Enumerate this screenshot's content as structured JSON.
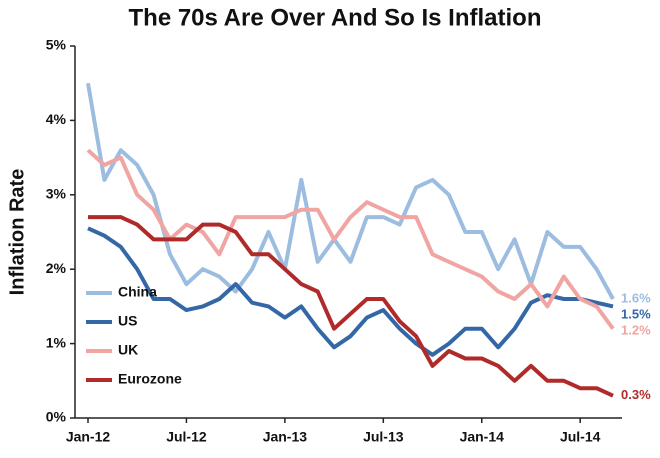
{
  "chart_data": {
    "type": "line",
    "title": "The 70s Are Over And So Is Inflation",
    "y_label": "Inflation Rate",
    "categories": [
      "Jan-12",
      null,
      null,
      null,
      null,
      null,
      "Jul-12",
      null,
      null,
      null,
      null,
      null,
      "Jan-13",
      null,
      null,
      null,
      null,
      null,
      "Jul-13",
      null,
      null,
      null,
      null,
      null,
      "Jan-14",
      null,
      null,
      null,
      null,
      null,
      "Jul-14",
      null,
      null
    ],
    "ylim": [
      0,
      5
    ],
    "yticks": [
      {
        "value": 0,
        "label": "0%"
      },
      {
        "value": 1,
        "label": "1%"
      },
      {
        "value": 2,
        "label": "2%"
      },
      {
        "value": 3,
        "label": "3%"
      },
      {
        "value": 4,
        "label": "4%"
      },
      {
        "value": 5,
        "label": "5%"
      }
    ],
    "grid": false,
    "legend": "lower left",
    "series": [
      {
        "name": "China",
        "color": "#9dbde0",
        "values": [
          4.5,
          3.2,
          3.6,
          3.4,
          3.0,
          2.2,
          1.8,
          2.0,
          1.9,
          1.7,
          2.0,
          2.5,
          2.0,
          3.2,
          2.1,
          2.4,
          2.1,
          2.7,
          2.7,
          2.6,
          3.1,
          3.2,
          3.0,
          2.5,
          2.5,
          2.0,
          2.4,
          1.8,
          2.5,
          2.3,
          2.3,
          2.0,
          1.6
        ],
        "value_labels": [
          null,
          null,
          null,
          null,
          null,
          null,
          null,
          null,
          null,
          null,
          null,
          null,
          null,
          null,
          null,
          null,
          null,
          null,
          null,
          null,
          null,
          null,
          null,
          null,
          null,
          null,
          null,
          null,
          null,
          null,
          null,
          null,
          "1.6%"
        ]
      },
      {
        "name": "US",
        "color": "#3467a6",
        "values": [
          2.55,
          2.45,
          2.3,
          2.0,
          1.6,
          1.6,
          1.45,
          1.5,
          1.6,
          1.8,
          1.55,
          1.5,
          1.35,
          1.5,
          1.2,
          0.95,
          1.1,
          1.35,
          1.45,
          1.2,
          1.0,
          0.85,
          1.0,
          1.2,
          1.2,
          0.95,
          1.2,
          1.55,
          1.65,
          1.6,
          1.6,
          1.55,
          1.5
        ],
        "value_labels": [
          null,
          null,
          null,
          null,
          null,
          null,
          null,
          null,
          null,
          null,
          null,
          null,
          null,
          null,
          null,
          null,
          null,
          null,
          null,
          null,
          null,
          null,
          null,
          null,
          null,
          null,
          null,
          null,
          null,
          null,
          null,
          null,
          "1.5%"
        ]
      },
      {
        "name": "UK",
        "color": "#f0a5a2",
        "values": [
          3.6,
          3.4,
          3.5,
          3.0,
          2.8,
          2.4,
          2.6,
          2.5,
          2.2,
          2.7,
          2.7,
          2.7,
          2.7,
          2.8,
          2.8,
          2.4,
          2.7,
          2.9,
          2.8,
          2.7,
          2.7,
          2.2,
          2.1,
          2.0,
          1.9,
          1.7,
          1.6,
          1.8,
          1.5,
          1.9,
          1.6,
          1.5,
          1.2
        ],
        "value_labels": [
          null,
          null,
          null,
          null,
          null,
          null,
          null,
          null,
          null,
          null,
          null,
          null,
          null,
          null,
          null,
          null,
          null,
          null,
          null,
          null,
          null,
          null,
          null,
          null,
          null,
          null,
          null,
          null,
          null,
          null,
          null,
          null,
          "1.2%"
        ]
      },
      {
        "name": "Eurozone",
        "color": "#b02a2a",
        "values": [
          2.7,
          2.7,
          2.7,
          2.6,
          2.4,
          2.4,
          2.4,
          2.6,
          2.6,
          2.5,
          2.2,
          2.2,
          2.0,
          1.8,
          1.7,
          1.2,
          1.4,
          1.6,
          1.6,
          1.3,
          1.1,
          0.7,
          0.9,
          0.8,
          0.8,
          0.7,
          0.5,
          0.7,
          0.5,
          0.5,
          0.4,
          0.4,
          0.3
        ],
        "value_labels": [
          null,
          null,
          null,
          null,
          null,
          null,
          null,
          null,
          null,
          null,
          null,
          null,
          null,
          null,
          null,
          null,
          null,
          null,
          null,
          null,
          null,
          null,
          null,
          null,
          null,
          null,
          null,
          null,
          null,
          null,
          null,
          null,
          "0.3%"
        ]
      }
    ]
  }
}
